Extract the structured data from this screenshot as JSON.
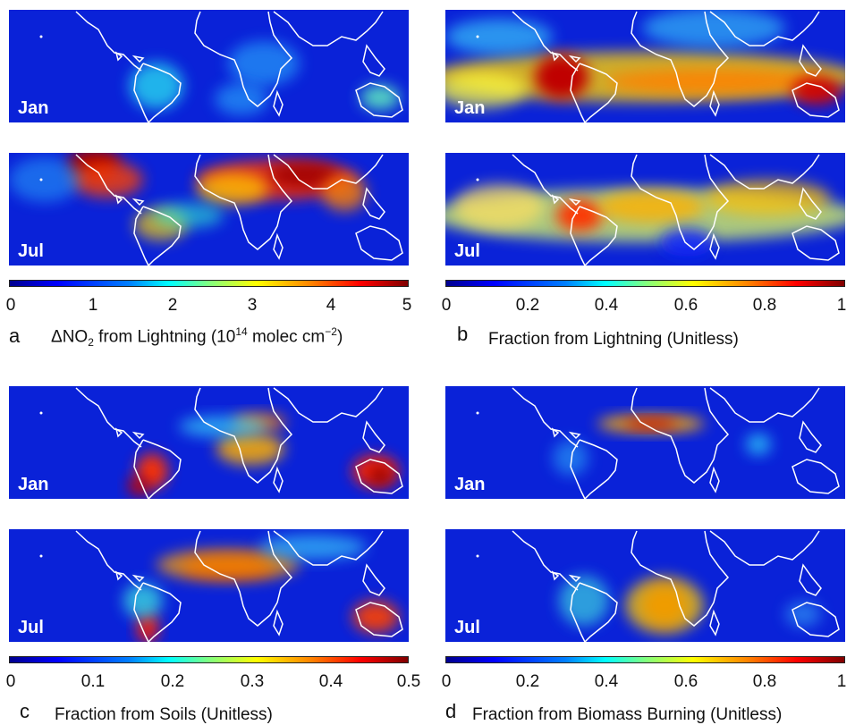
{
  "panels": {
    "a": {
      "letter": "a",
      "caption_parts": [
        "ΔNO",
        "2",
        " from Lightning (10",
        "14",
        " molec cm",
        "−2",
        ")"
      ],
      "ticks": [
        "0",
        "1",
        "2",
        "3",
        "4",
        "5"
      ],
      "range": [
        0,
        5
      ]
    },
    "b": {
      "letter": "b",
      "caption": "Fraction from Lightning (Unitless)",
      "ticks": [
        "0",
        "0.2",
        "0.4",
        "0.6",
        "0.8",
        "1"
      ],
      "range": [
        0,
        1
      ]
    },
    "c": {
      "letter": "c",
      "caption": "Fraction from Soils (Unitless)",
      "ticks": [
        "0",
        "0.1",
        "0.2",
        "0.3",
        "0.4",
        "0.5"
      ],
      "range": [
        0,
        0.5
      ]
    },
    "d": {
      "letter": "d",
      "caption": "Fraction from Biomass Burning (Unitless)",
      "ticks": [
        "0",
        "0.2",
        "0.4",
        "0.6",
        "0.8",
        "1"
      ],
      "range": [
        0,
        1
      ]
    }
  },
  "seasons": {
    "jan": "Jan",
    "jul": "Jul"
  },
  "colormap": [
    "#00008f",
    "#0000ff",
    "#0080ff",
    "#00ffff",
    "#80ff80",
    "#ffff00",
    "#ff8000",
    "#ff0000",
    "#800000"
  ]
}
